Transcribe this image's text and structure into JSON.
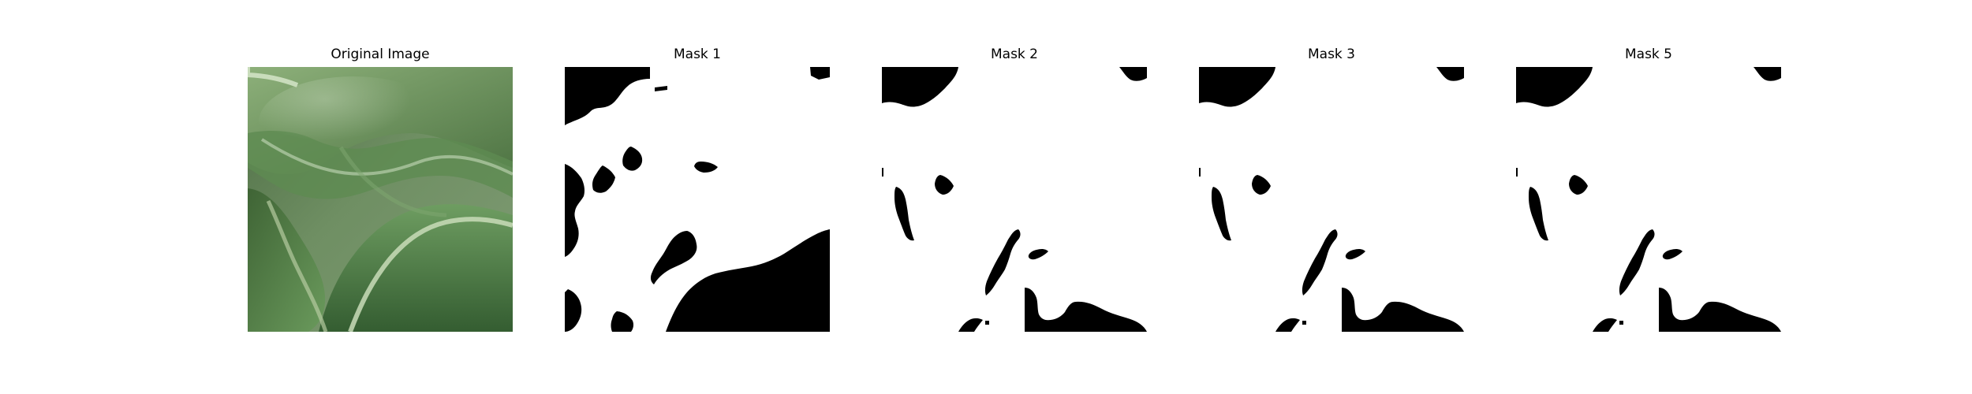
{
  "figure": {
    "panels": [
      {
        "id": "original",
        "title": "Original Image",
        "image_kind": "photo",
        "subject": "green leaves"
      },
      {
        "id": "mask1",
        "title": "Mask 1",
        "image_kind": "binary-mask"
      },
      {
        "id": "mask2",
        "title": "Mask 2",
        "image_kind": "binary-mask"
      },
      {
        "id": "mask3",
        "title": "Mask 3",
        "image_kind": "binary-mask"
      },
      {
        "id": "mask5",
        "title": "Mask 5",
        "image_kind": "binary-mask"
      }
    ]
  },
  "colors": {
    "background": "#ffffff",
    "mask_foreground": "#ffffff",
    "mask_background": "#000000",
    "leaf_dark": "#2f4f2b",
    "leaf_mid": "#5f8b4f",
    "leaf_light": "#a9c68b"
  }
}
